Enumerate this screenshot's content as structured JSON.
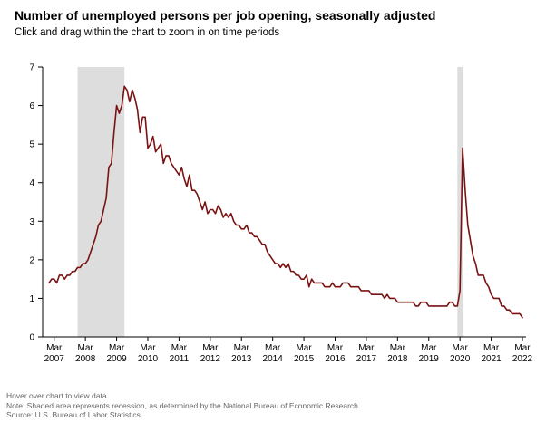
{
  "header": {
    "title": "Number of unemployed persons per job opening, seasonally adjusted",
    "subtitle": "Click and drag within the chart to zoom in on time periods"
  },
  "notes": {
    "hover": "Hover over chart to view data.",
    "note": "Note: Shaded area represents recession, as determined by the National Bureau of Economic Research.",
    "source": "Source: U.S. Bureau of Labor Statistics."
  },
  "colors": {
    "line": "#7a1212",
    "recession": "#dddddd",
    "axis": "#000000"
  },
  "chart_data": {
    "type": "line",
    "title": "Number of unemployed persons per job opening, seasonally adjusted",
    "xlabel": "",
    "ylabel": "",
    "ylim": [
      0,
      7
    ],
    "yticks": [
      0,
      1,
      2,
      3,
      4,
      5,
      6,
      7
    ],
    "grid": false,
    "x_range": [
      "2007-01",
      "2022-03"
    ],
    "xticks": [
      {
        "date": "2007-03",
        "month": "Mar",
        "year": "2007"
      },
      {
        "date": "2008-03",
        "month": "Mar",
        "year": "2008"
      },
      {
        "date": "2009-03",
        "month": "Mar",
        "year": "2009"
      },
      {
        "date": "2010-03",
        "month": "Mar",
        "year": "2010"
      },
      {
        "date": "2011-03",
        "month": "Mar",
        "year": "2011"
      },
      {
        "date": "2012-03",
        "month": "Mar",
        "year": "2012"
      },
      {
        "date": "2013-03",
        "month": "Mar",
        "year": "2013"
      },
      {
        "date": "2014-03",
        "month": "Mar",
        "year": "2014"
      },
      {
        "date": "2015-03",
        "month": "Mar",
        "year": "2015"
      },
      {
        "date": "2016-03",
        "month": "Mar",
        "year": "2016"
      },
      {
        "date": "2017-03",
        "month": "Mar",
        "year": "2017"
      },
      {
        "date": "2018-03",
        "month": "Mar",
        "year": "2018"
      },
      {
        "date": "2019-03",
        "month": "Mar",
        "year": "2019"
      },
      {
        "date": "2020-03",
        "month": "Mar",
        "year": "2020"
      },
      {
        "date": "2021-03",
        "month": "Mar",
        "year": "2021"
      },
      {
        "date": "2022-03",
        "month": "Mar",
        "year": "2022"
      }
    ],
    "recessions": [
      {
        "start": "2007-12",
        "end": "2009-06"
      },
      {
        "start": "2020-02",
        "end": "2020-04"
      }
    ],
    "series": [
      {
        "points": [
          [
            "2007-01",
            1.4
          ],
          [
            "2007-02",
            1.5
          ],
          [
            "2007-03",
            1.5
          ],
          [
            "2007-04",
            1.4
          ],
          [
            "2007-05",
            1.6
          ],
          [
            "2007-06",
            1.6
          ],
          [
            "2007-07",
            1.5
          ],
          [
            "2007-08",
            1.6
          ],
          [
            "2007-09",
            1.6
          ],
          [
            "2007-10",
            1.7
          ],
          [
            "2007-11",
            1.7
          ],
          [
            "2007-12",
            1.8
          ],
          [
            "2008-01",
            1.8
          ],
          [
            "2008-02",
            1.9
          ],
          [
            "2008-03",
            1.9
          ],
          [
            "2008-04",
            2.0
          ],
          [
            "2008-05",
            2.2
          ],
          [
            "2008-06",
            2.4
          ],
          [
            "2008-07",
            2.6
          ],
          [
            "2008-08",
            2.9
          ],
          [
            "2008-09",
            3.0
          ],
          [
            "2008-10",
            3.3
          ],
          [
            "2008-11",
            3.6
          ],
          [
            "2008-12",
            4.4
          ],
          [
            "2009-01",
            4.5
          ],
          [
            "2009-02",
            5.3
          ],
          [
            "2009-03",
            6.0
          ],
          [
            "2009-04",
            5.8
          ],
          [
            "2009-05",
            6.0
          ],
          [
            "2009-06",
            6.5
          ],
          [
            "2009-07",
            6.4
          ],
          [
            "2009-08",
            6.1
          ],
          [
            "2009-09",
            6.4
          ],
          [
            "2009-10",
            6.2
          ],
          [
            "2009-11",
            5.9
          ],
          [
            "2009-12",
            5.3
          ],
          [
            "2010-01",
            5.7
          ],
          [
            "2010-02",
            5.7
          ],
          [
            "2010-03",
            4.9
          ],
          [
            "2010-04",
            5.0
          ],
          [
            "2010-05",
            5.2
          ],
          [
            "2010-06",
            4.8
          ],
          [
            "2010-07",
            4.9
          ],
          [
            "2010-08",
            5.0
          ],
          [
            "2010-09",
            4.5
          ],
          [
            "2010-10",
            4.7
          ],
          [
            "2010-11",
            4.7
          ],
          [
            "2010-12",
            4.5
          ],
          [
            "2011-01",
            4.4
          ],
          [
            "2011-02",
            4.3
          ],
          [
            "2011-03",
            4.2
          ],
          [
            "2011-04",
            4.4
          ],
          [
            "2011-05",
            4.1
          ],
          [
            "2011-06",
            3.9
          ],
          [
            "2011-07",
            4.2
          ],
          [
            "2011-08",
            3.8
          ],
          [
            "2011-09",
            3.8
          ],
          [
            "2011-10",
            3.7
          ],
          [
            "2011-11",
            3.5
          ],
          [
            "2011-12",
            3.3
          ],
          [
            "2012-01",
            3.5
          ],
          [
            "2012-02",
            3.2
          ],
          [
            "2012-03",
            3.3
          ],
          [
            "2012-04",
            3.3
          ],
          [
            "2012-05",
            3.2
          ],
          [
            "2012-06",
            3.4
          ],
          [
            "2012-07",
            3.3
          ],
          [
            "2012-08",
            3.1
          ],
          [
            "2012-09",
            3.2
          ],
          [
            "2012-10",
            3.1
          ],
          [
            "2012-11",
            3.2
          ],
          [
            "2012-12",
            3.0
          ],
          [
            "2013-01",
            2.9
          ],
          [
            "2013-02",
            2.9
          ],
          [
            "2013-03",
            2.8
          ],
          [
            "2013-04",
            2.8
          ],
          [
            "2013-05",
            2.9
          ],
          [
            "2013-06",
            2.7
          ],
          [
            "2013-07",
            2.7
          ],
          [
            "2013-08",
            2.6
          ],
          [
            "2013-09",
            2.6
          ],
          [
            "2013-10",
            2.5
          ],
          [
            "2013-11",
            2.4
          ],
          [
            "2013-12",
            2.4
          ],
          [
            "2014-01",
            2.2
          ],
          [
            "2014-02",
            2.1
          ],
          [
            "2014-03",
            2.0
          ],
          [
            "2014-04",
            1.9
          ],
          [
            "2014-05",
            1.9
          ],
          [
            "2014-06",
            1.8
          ],
          [
            "2014-07",
            1.9
          ],
          [
            "2014-08",
            1.8
          ],
          [
            "2014-09",
            1.9
          ],
          [
            "2014-10",
            1.7
          ],
          [
            "2014-11",
            1.7
          ],
          [
            "2014-12",
            1.6
          ],
          [
            "2015-01",
            1.6
          ],
          [
            "2015-02",
            1.5
          ],
          [
            "2015-03",
            1.5
          ],
          [
            "2015-04",
            1.6
          ],
          [
            "2015-05",
            1.3
          ],
          [
            "2015-06",
            1.5
          ],
          [
            "2015-07",
            1.4
          ],
          [
            "2015-08",
            1.4
          ],
          [
            "2015-09",
            1.4
          ],
          [
            "2015-10",
            1.4
          ],
          [
            "2015-11",
            1.3
          ],
          [
            "2015-12",
            1.3
          ],
          [
            "2016-01",
            1.3
          ],
          [
            "2016-02",
            1.4
          ],
          [
            "2016-03",
            1.3
          ],
          [
            "2016-04",
            1.3
          ],
          [
            "2016-05",
            1.3
          ],
          [
            "2016-06",
            1.4
          ],
          [
            "2016-07",
            1.4
          ],
          [
            "2016-08",
            1.4
          ],
          [
            "2016-09",
            1.3
          ],
          [
            "2016-10",
            1.3
          ],
          [
            "2016-11",
            1.3
          ],
          [
            "2016-12",
            1.3
          ],
          [
            "2017-01",
            1.2
          ],
          [
            "2017-02",
            1.2
          ],
          [
            "2017-03",
            1.2
          ],
          [
            "2017-04",
            1.2
          ],
          [
            "2017-05",
            1.1
          ],
          [
            "2017-06",
            1.1
          ],
          [
            "2017-07",
            1.1
          ],
          [
            "2017-08",
            1.1
          ],
          [
            "2017-09",
            1.1
          ],
          [
            "2017-10",
            1.0
          ],
          [
            "2017-11",
            1.1
          ],
          [
            "2017-12",
            1.0
          ],
          [
            "2018-01",
            1.0
          ],
          [
            "2018-02",
            1.0
          ],
          [
            "2018-03",
            0.9
          ],
          [
            "2018-04",
            0.9
          ],
          [
            "2018-05",
            0.9
          ],
          [
            "2018-06",
            0.9
          ],
          [
            "2018-07",
            0.9
          ],
          [
            "2018-08",
            0.9
          ],
          [
            "2018-09",
            0.9
          ],
          [
            "2018-10",
            0.8
          ],
          [
            "2018-11",
            0.8
          ],
          [
            "2018-12",
            0.9
          ],
          [
            "2019-01",
            0.9
          ],
          [
            "2019-02",
            0.9
          ],
          [
            "2019-03",
            0.8
          ],
          [
            "2019-04",
            0.8
          ],
          [
            "2019-05",
            0.8
          ],
          [
            "2019-06",
            0.8
          ],
          [
            "2019-07",
            0.8
          ],
          [
            "2019-08",
            0.8
          ],
          [
            "2019-09",
            0.8
          ],
          [
            "2019-10",
            0.8
          ],
          [
            "2019-11",
            0.9
          ],
          [
            "2019-12",
            0.9
          ],
          [
            "2020-01",
            0.8
          ],
          [
            "2020-02",
            0.8
          ],
          [
            "2020-03",
            1.2
          ],
          [
            "2020-04",
            4.9
          ],
          [
            "2020-05",
            3.8
          ],
          [
            "2020-06",
            2.9
          ],
          [
            "2020-07",
            2.5
          ],
          [
            "2020-08",
            2.1
          ],
          [
            "2020-09",
            1.9
          ],
          [
            "2020-10",
            1.6
          ],
          [
            "2020-11",
            1.6
          ],
          [
            "2020-12",
            1.6
          ],
          [
            "2021-01",
            1.4
          ],
          [
            "2021-02",
            1.3
          ],
          [
            "2021-03",
            1.1
          ],
          [
            "2021-04",
            1.0
          ],
          [
            "2021-05",
            1.0
          ],
          [
            "2021-06",
            1.0
          ],
          [
            "2021-07",
            0.8
          ],
          [
            "2021-08",
            0.8
          ],
          [
            "2021-09",
            0.7
          ],
          [
            "2021-10",
            0.7
          ],
          [
            "2021-11",
            0.6
          ],
          [
            "2021-12",
            0.6
          ],
          [
            "2022-01",
            0.6
          ],
          [
            "2022-02",
            0.6
          ],
          [
            "2022-03",
            0.5
          ]
        ]
      }
    ]
  }
}
